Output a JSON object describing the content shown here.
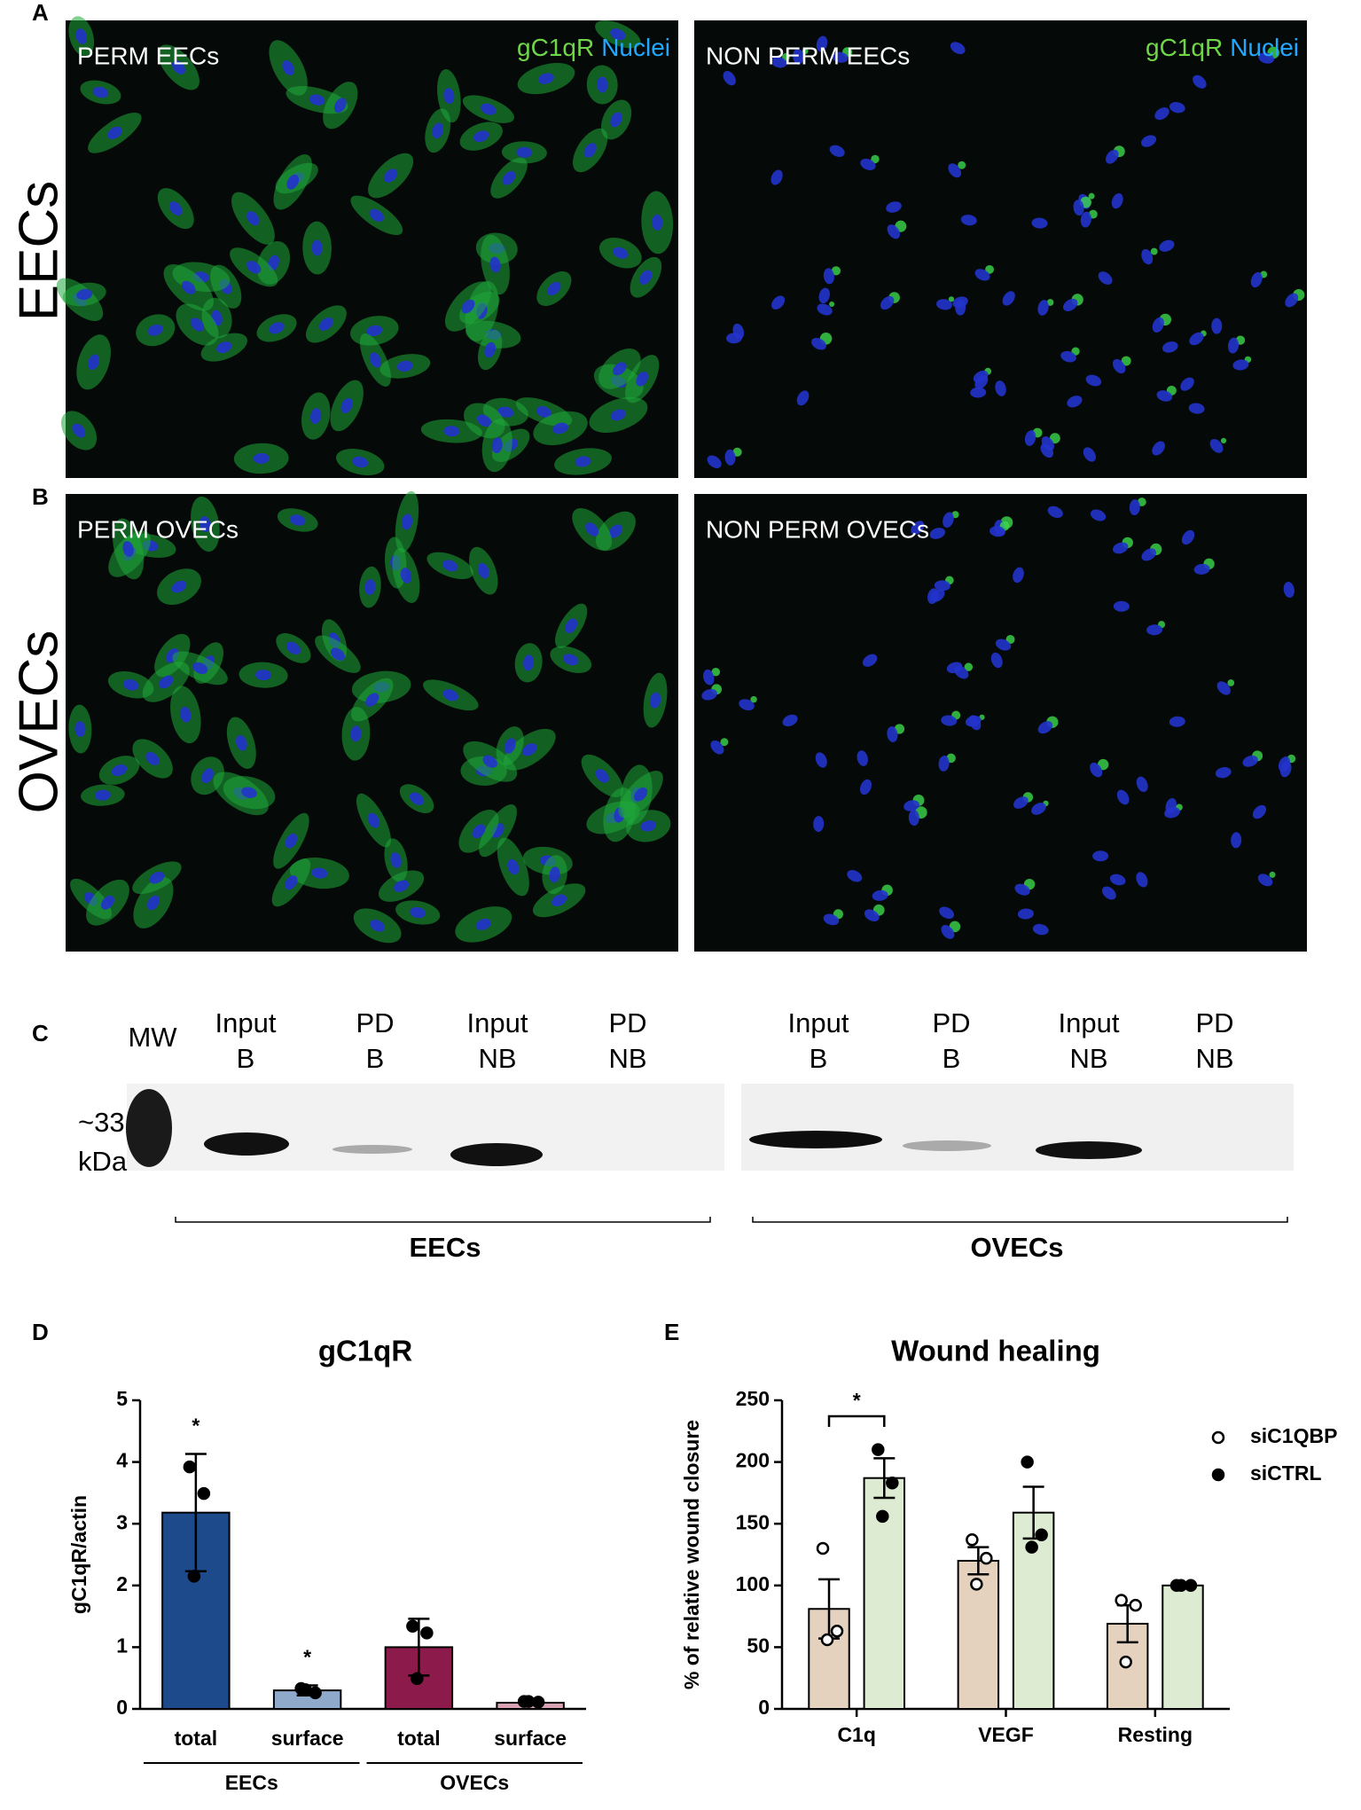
{
  "panel_labels": [
    "A",
    "B",
    "C",
    "D",
    "E"
  ],
  "microscopy": {
    "rows": [
      "EECs",
      "OVECs"
    ],
    "images": [
      "PERM EECs",
      "NON PERM EECs",
      "PERM OVECs",
      "NON PERM OVECs"
    ],
    "stain": [
      "gC1qR",
      "Nuclei"
    ]
  },
  "blot": {
    "ladder": "MW",
    "size": [
      "~33",
      "kDa"
    ],
    "left": {
      "lanes": [
        [
          "Input",
          "B"
        ],
        [
          "PD",
          "B"
        ],
        [
          "Input",
          "NB"
        ],
        [
          "PD",
          "NB"
        ]
      ],
      "group": "EECs"
    },
    "right": {
      "lanes": [
        [
          "Input",
          "B"
        ],
        [
          "PD",
          "B"
        ],
        [
          "Input",
          "NB"
        ],
        [
          "PD",
          "NB"
        ]
      ],
      "group": "OVECs"
    }
  },
  "chart_data": [
    {
      "type": "bar",
      "title": "gC1qR",
      "y_label": "gC1qR/actin",
      "categories": [
        "total",
        "surface",
        "total",
        "surface"
      ],
      "groups": [
        "EECs",
        "OVECs"
      ],
      "values": [
        3.18,
        0.3,
        1.0,
        0.1
      ],
      "errors": [
        0.95,
        0.08,
        0.46,
        0.03
      ],
      "points": [
        [
          3.92,
          3.49,
          2.15
        ],
        [
          0.33,
          0.26,
          0.31
        ],
        [
          1.34,
          1.23,
          0.49
        ],
        [
          0.12,
          0.11,
          0.12
        ]
      ],
      "colors": [
        "#1d4a8a",
        "#8ea9c9",
        "#8c1b4b",
        "#d9a3b3"
      ],
      "significance": [
        "*",
        "*",
        null,
        null
      ],
      "ylim": [
        0,
        5
      ],
      "yticks": [
        0,
        1,
        2,
        3,
        4,
        5
      ]
    },
    {
      "type": "bar",
      "title": "Wound healing",
      "y_label": "% of relative wound closure",
      "categories": [
        "C1q",
        "VEGF",
        "Resting"
      ],
      "series": [
        {
          "name": "siC1QBP",
          "color": "#e4d2bf",
          "marker": "open",
          "values": [
            81,
            120,
            69
          ],
          "errors": [
            24,
            11,
            15
          ],
          "points": [
            [
              130,
              63,
              56
            ],
            [
              137,
              122,
              101
            ],
            [
              88,
              84,
              38
            ]
          ]
        },
        {
          "name": "siCTRL",
          "color": "#dcebd1",
          "marker": "filled",
          "values": [
            187,
            159,
            100
          ],
          "errors": [
            16,
            21,
            0
          ],
          "points": [
            [
              210,
              183,
              156
            ],
            [
              200,
              141,
              131
            ],
            [
              100,
              100,
              100
            ]
          ]
        }
      ],
      "significance": [
        "*",
        null,
        null
      ],
      "ylim": [
        0,
        250
      ],
      "yticks": [
        0,
        50,
        100,
        150,
        200,
        250
      ]
    }
  ]
}
